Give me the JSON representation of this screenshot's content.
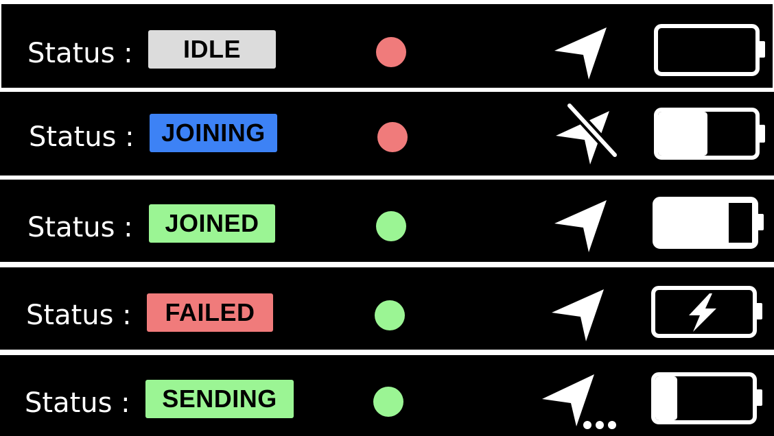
{
  "colors": {
    "row_background": "#000000",
    "separator": "#ffffff",
    "text": "#ffffff",
    "badge_text": "#000000",
    "dot_red": "#f07b7b",
    "dot_green": "#9bf594"
  },
  "rows": [
    {
      "label": "Status :",
      "badge": "IDLE",
      "badge_color": "#dcdcdc",
      "dot_color": "#f07b7b",
      "location_icon": "location-arrow-icon",
      "battery_icon": "battery-empty-icon",
      "battery_level": 0
    },
    {
      "label": "Status :",
      "badge": "JOINING",
      "badge_color": "#3d82f5",
      "dot_color": "#f07b7b",
      "location_icon": "location-off-icon",
      "battery_icon": "battery-half-icon",
      "battery_level": 0.5
    },
    {
      "label": "Status :",
      "badge": "JOINED",
      "badge_color": "#9bf594",
      "dot_color": "#9bf594",
      "location_icon": "location-arrow-icon",
      "battery_icon": "battery-mostly-full-icon",
      "battery_level": 0.72
    },
    {
      "label": "Status :",
      "badge": "FAILED",
      "badge_color": "#f07b7b",
      "dot_color": "#9bf594",
      "location_icon": "location-arrow-icon",
      "battery_icon": "battery-charging-icon",
      "battery_level": 0
    },
    {
      "label": "Status :",
      "badge": "SENDING",
      "badge_color": "#9bf594",
      "dot_color": "#9bf594",
      "location_icon": "location-sending-icon",
      "battery_icon": "battery-low-icon",
      "battery_level": 0.2
    }
  ]
}
